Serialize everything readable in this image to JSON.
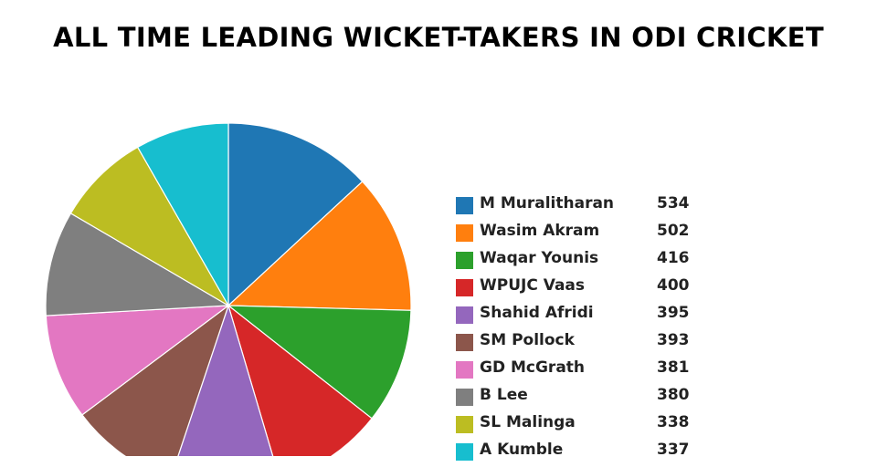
{
  "chart_data": {
    "type": "pie",
    "title": "ALL TIME LEADING WICKET-TAKERS IN ODI CRICKET",
    "legend_position": "right",
    "slices": [
      {
        "label": "M Muralitharan",
        "value": 534,
        "color": "#1f77b4"
      },
      {
        "label": "Wasim Akram",
        "value": 502,
        "color": "#ff7f0e"
      },
      {
        "label": "Waqar Younis",
        "value": 416,
        "color": "#2ca02c"
      },
      {
        "label": "WPUJC Vaas",
        "value": 400,
        "color": "#d62728"
      },
      {
        "label": "Shahid Afridi",
        "value": 395,
        "color": "#9467bd"
      },
      {
        "label": "SM Pollock",
        "value": 393,
        "color": "#8c564b"
      },
      {
        "label": "GD McGrath",
        "value": 381,
        "color": "#e377c2"
      },
      {
        "label": "B Lee",
        "value": 380,
        "color": "#7f7f7f"
      },
      {
        "label": "SL Malinga",
        "value": 338,
        "color": "#bcbd22"
      },
      {
        "label": "A Kumble",
        "value": 337,
        "color": "#17becf"
      }
    ]
  }
}
